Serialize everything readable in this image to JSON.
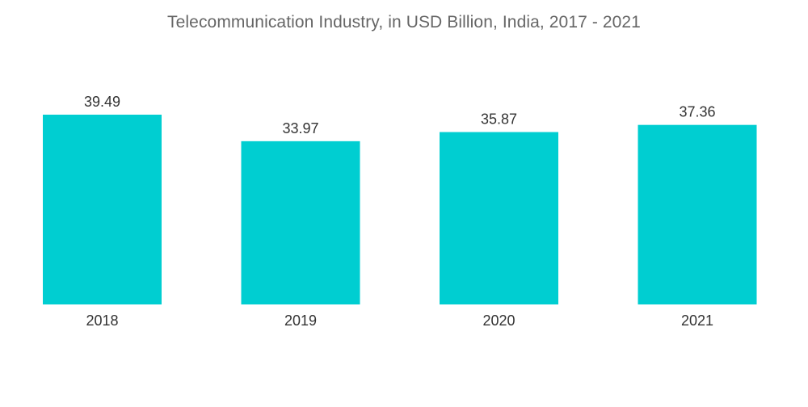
{
  "chart_data": {
    "type": "bar",
    "title": "Telecommunication Industry, in USD Billion, India, 2017 - 2021",
    "xlabel": "",
    "ylabel": "",
    "categories": [
      "2018",
      "2019",
      "2020",
      "2021"
    ],
    "values": [
      39.49,
      33.97,
      35.87,
      37.36
    ],
    "value_labels": [
      "39.49",
      "33.97",
      "35.87",
      "37.36"
    ],
    "ylim": [
      0,
      39.49
    ],
    "grid": false,
    "legend": "none",
    "bar_color": "#00CED1"
  }
}
